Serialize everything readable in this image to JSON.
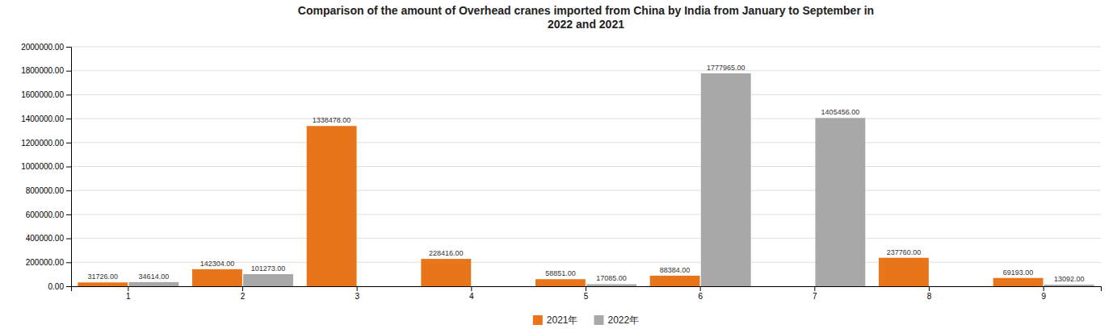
{
  "chart_data": {
    "type": "bar",
    "title": "Comparison of the amount of Overhead cranes imported from China by India from January to September in\n2022 and 2021",
    "categories": [
      1,
      2,
      3,
      4,
      5,
      6,
      7,
      8,
      9
    ],
    "series": [
      {
        "name": "2021年",
        "color": "#E8751A",
        "values": [
          31726,
          142304,
          1338478,
          228416,
          58851,
          88384,
          0,
          237760,
          69193
        ],
        "value_labels": [
          "31726.00",
          "142304.00",
          "1338478.00",
          "228416.00",
          "58851.00",
          "88384.00",
          null,
          "237760.00",
          "69193.00"
        ]
      },
      {
        "name": "2022年",
        "color": "#A8A8A8",
        "values": [
          34614,
          101273,
          0,
          0,
          17085,
          1777965,
          1405456,
          0,
          13092
        ],
        "value_labels": [
          "34614.00",
          "101273.00",
          null,
          null,
          "17085.00",
          "1777965.00",
          "1405456.00",
          null,
          "13092.00"
        ]
      }
    ],
    "ylim": [
      0,
      2000000
    ],
    "yticks": [
      {
        "value": 0,
        "label": "0.00"
      },
      {
        "value": 200000,
        "label": "200000.00"
      },
      {
        "value": 400000,
        "label": "400000.00"
      },
      {
        "value": 600000,
        "label": "600000.00"
      },
      {
        "value": 800000,
        "label": "800000.00"
      },
      {
        "value": 1000000,
        "label": "1000000.00"
      },
      {
        "value": 1200000,
        "label": "1200000.00"
      },
      {
        "value": 1400000,
        "label": "1400000.00"
      },
      {
        "value": 1600000,
        "label": "1600000.00"
      },
      {
        "value": 1800000,
        "label": "1800000.00"
      },
      {
        "value": 2000000,
        "label": "2000000.00"
      }
    ],
    "grid": true,
    "legend": "bottom",
    "data_labels": true
  }
}
